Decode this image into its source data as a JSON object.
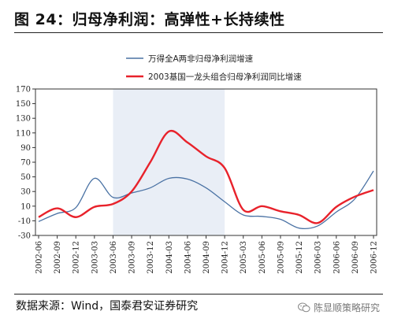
{
  "figure": {
    "title": "图 24：归母净利润：高弹性+长持续性",
    "source": "数据来源：Wind，国泰君安证券研究",
    "watermark": "陈显顺策略研究"
  },
  "colors": {
    "series_blue": "#4a72a4",
    "series_red": "#e8222b",
    "shade": "#e9eef6",
    "axis": "#333333"
  },
  "chart_data": {
    "type": "line",
    "title": "",
    "xlabel": "",
    "ylabel": "",
    "ylim": [
      -30,
      170
    ],
    "yticks": [
      -30,
      -10,
      10,
      30,
      50,
      70,
      90,
      110,
      130,
      150,
      170
    ],
    "x_tick_labels": [
      "2002-06",
      "2002-09",
      "2002-12",
      "2003-03",
      "2003-06",
      "2003-09",
      "2003-12",
      "2004-03",
      "2004-06",
      "2004-09",
      "2004-12",
      "2005-03",
      "2005-06",
      "2005-09",
      "2005-12",
      "2006-03",
      "2006-06",
      "2006-09",
      "2006-12"
    ],
    "shaded_range": [
      "2003-06",
      "2004-12"
    ],
    "grid": false,
    "legend_position": "top-right",
    "series": [
      {
        "name": "万得全A两非归母净利润增速",
        "color": "#4a72a4",
        "x": [
          "2002-06",
          "2002-09",
          "2002-12",
          "2003-03",
          "2003-06",
          "2003-09",
          "2003-12",
          "2004-03",
          "2004-06",
          "2004-09",
          "2004-12",
          "2005-03",
          "2005-06",
          "2005-09",
          "2005-12",
          "2006-03",
          "2006-06",
          "2006-09",
          "2006-12"
        ],
        "values": [
          -11,
          0,
          8,
          48,
          22,
          28,
          35,
          48,
          47,
          35,
          16,
          -2,
          -4,
          -8,
          -20,
          -17,
          2,
          20,
          58
        ]
      },
      {
        "name": "2003基国一龙头组合归母净利润同比增速",
        "color": "#e8222b",
        "x": [
          "2002-06",
          "2002-09",
          "2002-12",
          "2003-03",
          "2003-06",
          "2003-09",
          "2003-12",
          "2004-03",
          "2004-06",
          "2004-09",
          "2004-12",
          "2005-03",
          "2005-06",
          "2005-09",
          "2005-12",
          "2006-03",
          "2006-06",
          "2006-09",
          "2006-12"
        ],
        "values": [
          -5,
          7,
          -5,
          9,
          13,
          30,
          70,
          112,
          97,
          78,
          62,
          5,
          10,
          3,
          -2,
          -13,
          9,
          23,
          32
        ]
      }
    ]
  }
}
